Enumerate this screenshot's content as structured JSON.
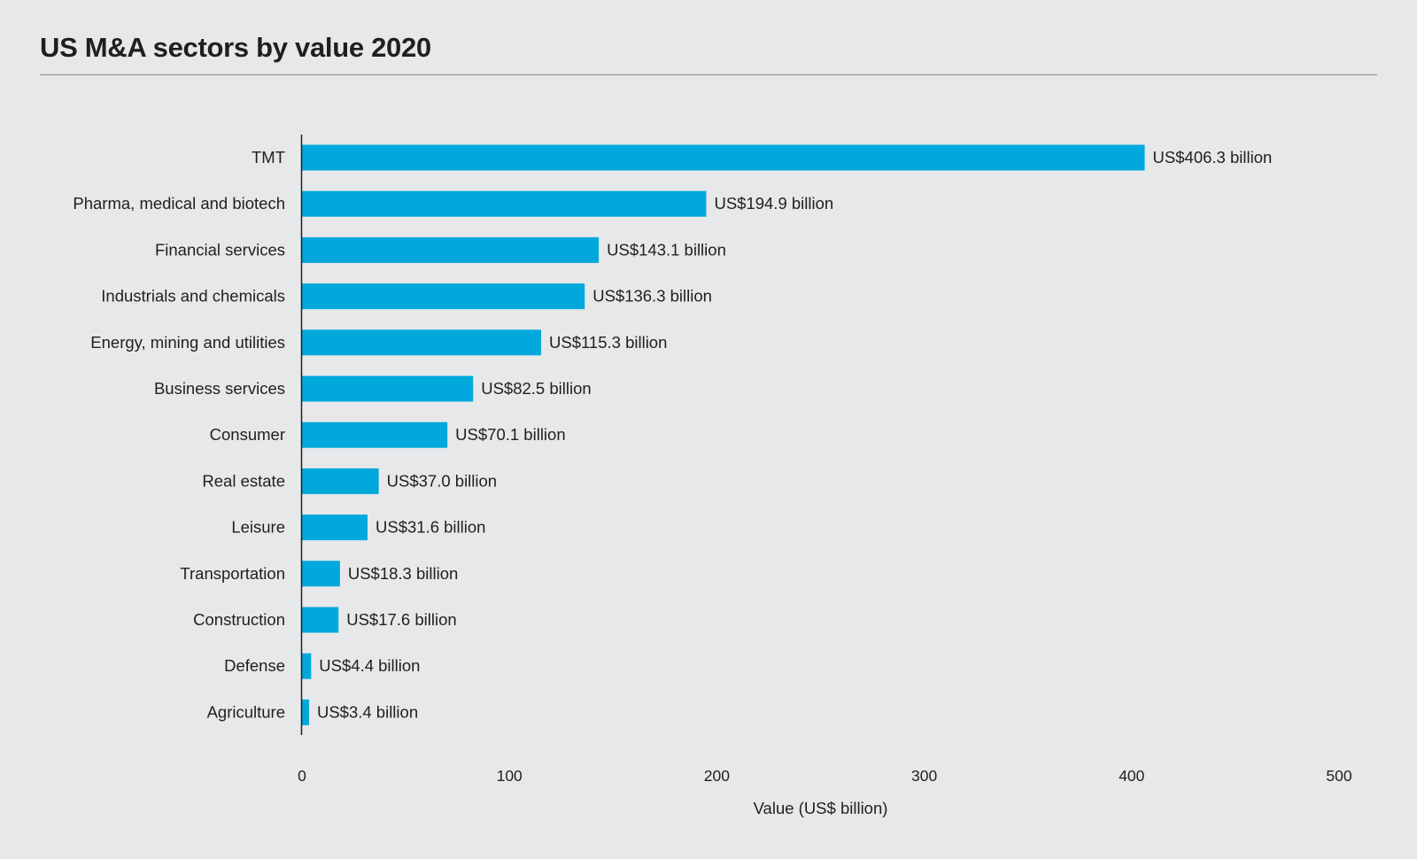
{
  "chart_data": {
    "type": "bar",
    "orientation": "horizontal",
    "title": "US M&A sectors by value 2020",
    "xlabel": "Value (US$ billion)",
    "ylabel": "",
    "xlim": [
      0,
      500
    ],
    "xticks": [
      0,
      100,
      200,
      300,
      400,
      500
    ],
    "grid": false,
    "bar_color": "#00a8dc",
    "categories": [
      "TMT",
      "Pharma, medical and biotech",
      "Financial services",
      "Industrials and chemicals",
      "Energy, mining and utilities",
      "Business services",
      "Consumer",
      "Real estate",
      "Leisure",
      "Transportation",
      "Construction",
      "Defense",
      "Agriculture"
    ],
    "values": [
      406.3,
      194.9,
      143.1,
      136.3,
      115.3,
      82.5,
      70.1,
      37.0,
      31.6,
      18.3,
      17.6,
      4.4,
      3.4
    ],
    "data_labels": [
      "US$406.3 billion",
      "US$194.9 billion",
      "US$143.1 billion",
      "US$136.3 billion",
      "US$115.3 billion",
      "US$82.5 billion",
      "US$70.1 billion",
      "US$37.0 billion",
      "US$31.6 billion",
      "US$18.3 billion",
      "US$17.6 billion",
      "US$4.4 billion",
      "US$3.4 billion"
    ]
  }
}
